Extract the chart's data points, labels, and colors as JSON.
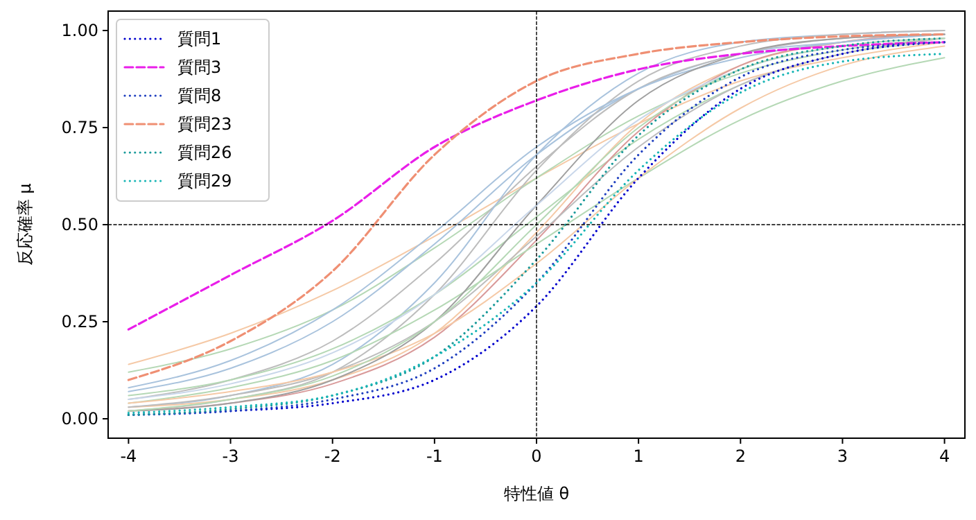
{
  "chart_data": {
    "type": "line",
    "xlabel": "特性値 θ",
    "ylabel": "反応確率 μ",
    "x": [
      -4,
      -3,
      -2,
      -1,
      0,
      1,
      2,
      3,
      4
    ],
    "xlim": [
      -4.2,
      4.2
    ],
    "xticks": [
      -4,
      -3,
      -2,
      -1,
      0,
      1,
      2,
      3,
      4
    ],
    "ylim": [
      -0.05,
      1.05
    ],
    "yticks": [
      {
        "value": 0,
        "label": "0.00"
      },
      {
        "value": 0.25,
        "label": "0.25"
      },
      {
        "value": 0.5,
        "label": "0.50"
      },
      {
        "value": 0.75,
        "label": "0.75"
      },
      {
        "value": 1,
        "label": "1.00"
      }
    ],
    "grid": false,
    "legend": "top left",
    "ref_lines": [
      {
        "axis": "y",
        "value": 0.5,
        "color": "#000000",
        "line_style": "dashed"
      },
      {
        "axis": "x",
        "value": 0,
        "color": "#000000",
        "line_style": "dashed"
      }
    ],
    "series": [
      {
        "color": "#f5c9a6",
        "line_style": "solid",
        "values": [
          0.14,
          0.22,
          0.33,
          0.47,
          0.62,
          0.76,
          0.87,
          0.93,
          0.97
        ]
      },
      {
        "color": "#b5d8b5",
        "line_style": "solid",
        "values": [
          0.12,
          0.18,
          0.28,
          0.44,
          0.62,
          0.78,
          0.89,
          0.95,
          0.98
        ]
      },
      {
        "color": "#a9c3dd",
        "line_style": "solid",
        "values": [
          0.07,
          0.13,
          0.25,
          0.45,
          0.68,
          0.85,
          0.94,
          0.97,
          0.99
        ]
      },
      {
        "color": "#bdbdbd",
        "line_style": "solid",
        "values": [
          0.05,
          0.1,
          0.2,
          0.4,
          0.65,
          0.85,
          0.94,
          0.98,
          0.99
        ]
      },
      {
        "color": "#a9c3dd",
        "line_style": "solid",
        "values": [
          0.03,
          0.06,
          0.14,
          0.35,
          0.68,
          0.89,
          0.97,
          0.99,
          1.0
        ]
      },
      {
        "color": "#bdbdbd",
        "line_style": "solid",
        "values": [
          0.02,
          0.05,
          0.12,
          0.32,
          0.64,
          0.87,
          0.96,
          0.99,
          1.0
        ]
      },
      {
        "color": "#b5d8b5",
        "line_style": "solid",
        "values": [
          0.06,
          0.1,
          0.18,
          0.32,
          0.52,
          0.72,
          0.86,
          0.94,
          0.97
        ]
      },
      {
        "color": "#f5c9a6",
        "line_style": "solid",
        "values": [
          0.03,
          0.05,
          0.1,
          0.22,
          0.48,
          0.76,
          0.91,
          0.97,
          0.99
        ]
      },
      {
        "color": "#d99a9a",
        "line_style": "solid",
        "values": [
          0.02,
          0.04,
          0.09,
          0.21,
          0.46,
          0.74,
          0.91,
          0.97,
          0.99
        ]
      },
      {
        "color": "#bdbdbd",
        "line_style": "solid",
        "values": [
          0.03,
          0.06,
          0.12,
          0.25,
          0.47,
          0.7,
          0.86,
          0.94,
          0.98
        ]
      },
      {
        "color": "#b5d8b5",
        "line_style": "solid",
        "values": [
          0.04,
          0.08,
          0.15,
          0.28,
          0.45,
          0.62,
          0.77,
          0.87,
          0.93
        ]
      },
      {
        "color": "#a9c3dd",
        "line_style": "solid",
        "values": [
          0.08,
          0.15,
          0.28,
          0.48,
          0.7,
          0.85,
          0.93,
          0.97,
          0.99
        ]
      },
      {
        "color": "#f5c9a6",
        "line_style": "solid",
        "values": [
          0.04,
          0.07,
          0.12,
          0.22,
          0.4,
          0.62,
          0.8,
          0.91,
          0.96
        ]
      },
      {
        "color": "#a0a0a0",
        "line_style": "solid",
        "values": [
          0.02,
          0.04,
          0.1,
          0.25,
          0.55,
          0.82,
          0.94,
          0.98,
          0.99
        ]
      },
      {
        "color": "#c9d7ea",
        "line_style": "solid",
        "values": [
          0.05,
          0.09,
          0.17,
          0.32,
          0.55,
          0.77,
          0.9,
          0.96,
          0.98
        ]
      },
      {
        "color": "#b5d8b5",
        "line_style": "solid",
        "values": [
          0.02,
          0.05,
          0.11,
          0.25,
          0.5,
          0.75,
          0.9,
          0.96,
          0.98
        ]
      },
      {
        "name": "質問1",
        "color": "#0000cd",
        "line_style": "dotted",
        "values": [
          0.01,
          0.02,
          0.04,
          0.1,
          0.29,
          0.62,
          0.85,
          0.94,
          0.97
        ]
      },
      {
        "name": "質問3",
        "color": "#e91ee9",
        "line_style": "dashed",
        "values": [
          0.23,
          0.37,
          0.51,
          0.7,
          0.82,
          0.9,
          0.94,
          0.96,
          0.97
        ]
      },
      {
        "name": "質問8",
        "color": "#1f3fbf",
        "line_style": "dotted",
        "values": [
          0.01,
          0.02,
          0.05,
          0.13,
          0.35,
          0.68,
          0.88,
          0.95,
          0.97
        ]
      },
      {
        "name": "質問23",
        "color": "#ef8f73",
        "line_style": "dashed",
        "values": [
          0.1,
          0.2,
          0.38,
          0.68,
          0.87,
          0.94,
          0.97,
          0.985,
          0.99
        ]
      },
      {
        "name": "質問26",
        "color": "#1a9a9a",
        "line_style": "dotted",
        "values": [
          0.01,
          0.025,
          0.06,
          0.16,
          0.41,
          0.73,
          0.9,
          0.96,
          0.98
        ]
      },
      {
        "name": "質問29",
        "color": "#17b5b5",
        "line_style": "dotted",
        "values": [
          0.015,
          0.03,
          0.06,
          0.16,
          0.35,
          0.64,
          0.84,
          0.92,
          0.94
        ]
      }
    ]
  }
}
